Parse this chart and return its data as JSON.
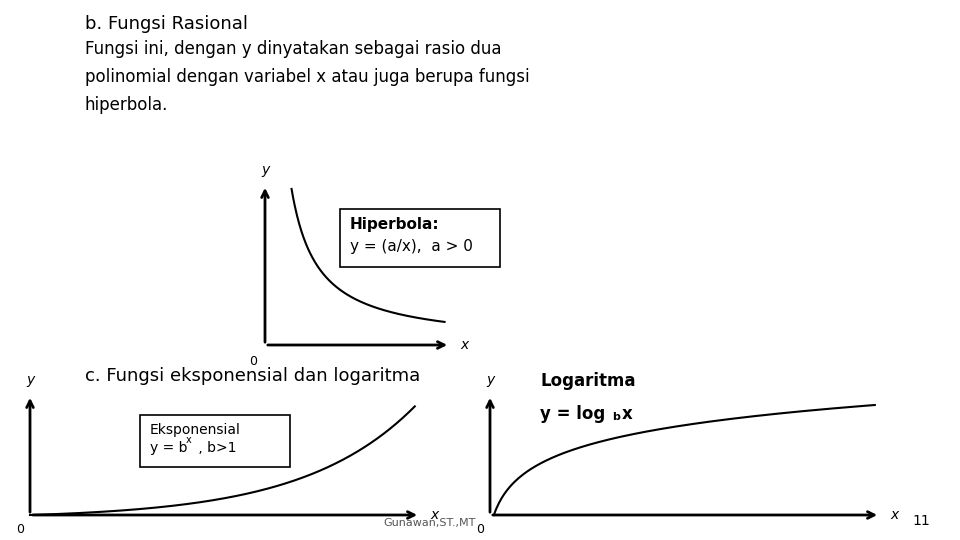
{
  "title_b": "b. Fungsi Rasional",
  "desc_b": "Fungsi ini, dengan y dinyatakan sebagai rasio dua\npolinomial dengan variabel x atau juga berupa fungsi\nhiperbola.",
  "hiperbola_label_line1": "Hiperbola:",
  "hiperbola_label_line2": "y = (a/x),  a > 0",
  "title_c": "c. Fungsi eksponensial dan logaritma",
  "eksp_label_line1": "Eksponensial",
  "log_label_line1": "Logaritma",
  "footer": "Gunawan,ST.,MT",
  "page_num": "11",
  "bg_color": "#ffffff",
  "text_color": "#000000",
  "font_size_title": 13,
  "font_size_text": 12,
  "font_size_label": 10,
  "font_size_small": 9
}
